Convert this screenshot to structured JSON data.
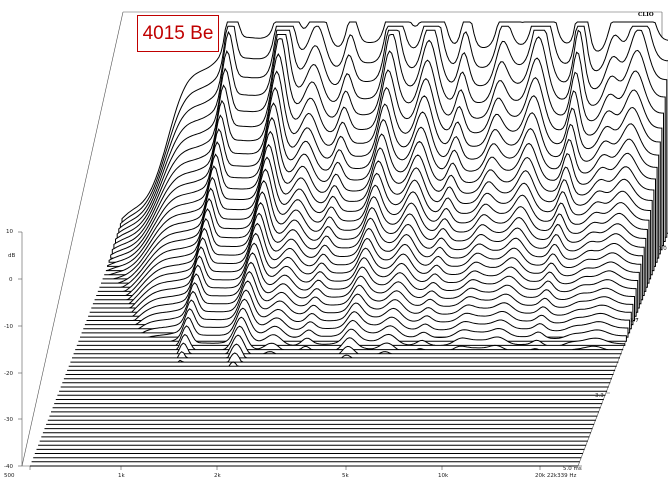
{
  "chart_data": {
    "type": "waterfall",
    "title": "4015 Be",
    "brand": "CLIO",
    "x_scale": "log",
    "x_ticks": [
      "500",
      "1k",
      "2k",
      "5k",
      "10k",
      "20k 22k339 Hz"
    ],
    "y_ticks": [
      "10",
      "dB",
      "0",
      "-10",
      "-20",
      "-30",
      "-40"
    ],
    "ylim": [
      -40,
      10
    ],
    "z_ticks": [
      "0.0",
      "1.7",
      "3.3",
      "5.0 ms"
    ],
    "z_range_ms": [
      0,
      5.0
    ],
    "slice_count": 58,
    "grid": false
  }
}
